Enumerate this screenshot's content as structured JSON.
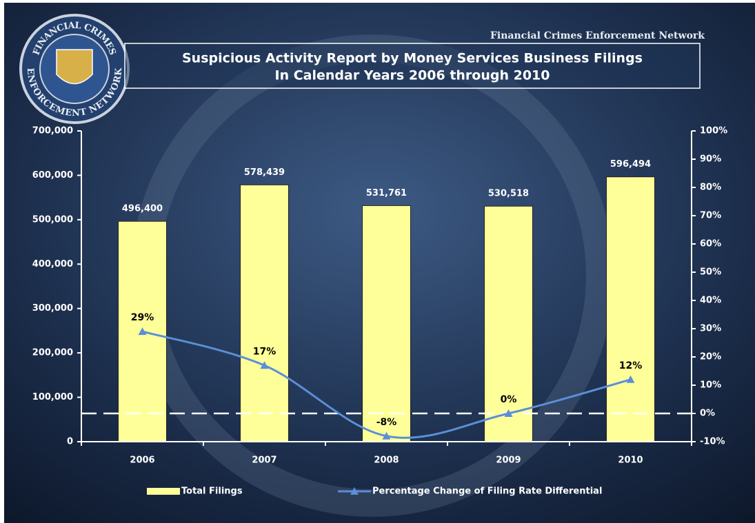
{
  "header": {
    "organization": "Financial Crimes Enforcement Network",
    "seal_text": [
      "FINANCIAL CRIMES",
      "ENFORCEMENT NETWORK"
    ]
  },
  "chart_data": {
    "type": "bar",
    "title": [
      "Suspicious Activity Report by Money Services Business Filings",
      "In Calendar Years 2006 through 2010"
    ],
    "categories": [
      "2006",
      "2007",
      "2008",
      "2009",
      "2010"
    ],
    "series": [
      {
        "name": "Total Filings",
        "type": "bar",
        "color": "#ffff99",
        "values": [
          496400,
          578439,
          531761,
          530518,
          596494
        ],
        "value_labels": [
          "496,400",
          "578,439",
          "531,761",
          "530,518",
          "596,494"
        ]
      },
      {
        "name": "Percentage Change of Filing Rate Differential",
        "type": "line",
        "axis": "y2",
        "color": "#5b8fd6",
        "values": [
          29,
          17,
          -8,
          0,
          12
        ],
        "value_labels": [
          "29%",
          "17%",
          "-8%",
          "0%",
          "12%"
        ]
      }
    ],
    "ylim": [
      0,
      700000
    ],
    "yticks": [
      0,
      {
        "value": 100000,
        "label": "100,000"
      },
      {
        "value": 200000,
        "label": "200,000"
      },
      {
        "value": 300000,
        "label": "300,000"
      },
      {
        "value": 400000,
        "label": "400,000"
      },
      {
        "value": 500000,
        "label": "500,000"
      },
      {
        "value": 600000,
        "label": "600,000"
      },
      {
        "value": 700000,
        "label": "700,000"
      }
    ],
    "y2lim": [
      -10,
      100
    ],
    "y2ticks": [
      {
        "value": -10,
        "label": "-10%"
      },
      {
        "value": 0,
        "label": "0%"
      },
      {
        "value": 10,
        "label": "10%"
      },
      {
        "value": 20,
        "label": "20%"
      },
      {
        "value": 30,
        "label": "30%"
      },
      {
        "value": 40,
        "label": "40%"
      },
      {
        "value": 50,
        "label": "50%"
      },
      {
        "value": 60,
        "label": "60%"
      },
      {
        "value": 70,
        "label": "70%"
      },
      {
        "value": 80,
        "label": "80%"
      },
      {
        "value": 90,
        "label": "90%"
      },
      {
        "value": 100,
        "label": "100%"
      }
    ],
    "legend": "bottom"
  }
}
